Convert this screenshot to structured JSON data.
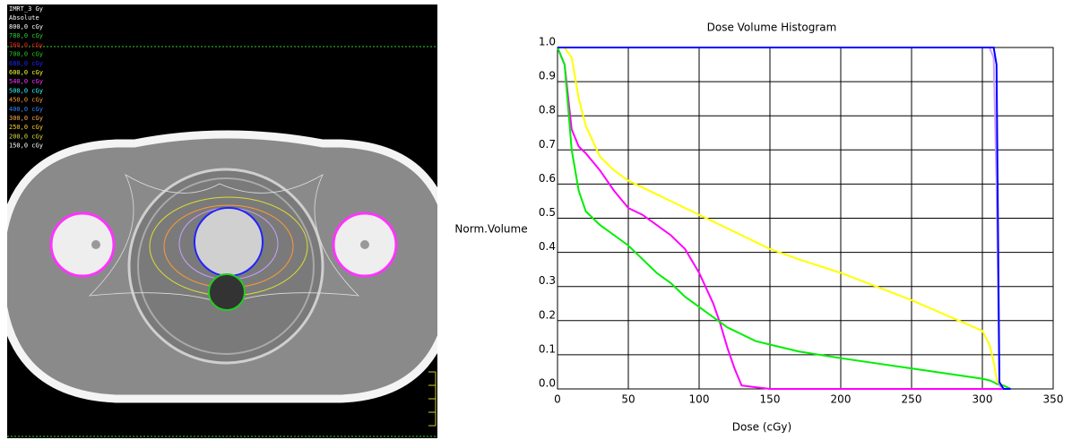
{
  "image_panel": {
    "plan": "IMRT_3 Gy",
    "mode": "Absolute",
    "isodoses": [
      {
        "label": "800,0 cGy",
        "color": "#ffffff"
      },
      {
        "label": "780,0 cGy",
        "color": "#33cc33"
      },
      {
        "label": "760,0 cGy",
        "color": "#ff2020"
      },
      {
        "label": "700,0 cGy",
        "color": "#22cc22"
      },
      {
        "label": "680,0 cGy",
        "color": "#2222ff"
      },
      {
        "label": "600,0 cGy",
        "color": "#ffff33"
      },
      {
        "label": "540,0 cGy",
        "color": "#ff33ff"
      },
      {
        "label": "500,0 cGy",
        "color": "#33ffff"
      },
      {
        "label": "450,0 cGy",
        "color": "#ff9933"
      },
      {
        "label": "400,0 cGy",
        "color": "#3388ff"
      },
      {
        "label": "300,0 cGy",
        "color": "#ffaa55"
      },
      {
        "label": "250,0 cGy",
        "color": "#ffcc33"
      },
      {
        "label": "200,0 cGy",
        "color": "#dddd44"
      },
      {
        "label": "150,0 cGy",
        "color": "#ffffff"
      }
    ]
  },
  "chart_data": {
    "type": "line",
    "title": "Dose Volume Histogram",
    "x_label": "Dose (cGy)",
    "y_label": "Norm.Volume",
    "x": [
      0,
      5,
      10,
      15,
      20,
      30,
      40,
      50,
      60,
      70,
      80,
      90,
      100,
      110,
      115,
      120,
      125,
      130,
      140,
      150,
      170,
      200,
      250,
      300,
      305,
      308,
      310,
      312,
      315,
      320
    ],
    "series": [
      {
        "color": "#ffff00",
        "values": [
          1.0,
          1.0,
          0.97,
          0.85,
          0.77,
          0.68,
          0.64,
          0.61,
          0.59,
          0.57,
          0.55,
          0.53,
          0.51,
          0.49,
          0.48,
          0.47,
          0.46,
          0.45,
          0.43,
          0.41,
          0.38,
          0.34,
          0.26,
          0.17,
          0.13,
          0.08,
          0.03,
          0.01,
          0,
          0
        ]
      },
      {
        "color": "#ff00ff",
        "values": [
          1.0,
          0.95,
          0.76,
          0.71,
          0.69,
          0.64,
          0.58,
          0.53,
          0.51,
          0.48,
          0.45,
          0.41,
          0.34,
          0.25,
          0.19,
          0.12,
          0.06,
          0.01,
          0.005,
          0,
          0,
          0,
          0,
          0,
          0,
          0,
          0,
          0,
          0,
          0
        ]
      },
      {
        "color": "#00ee00",
        "values": [
          1.0,
          0.95,
          0.7,
          0.58,
          0.52,
          0.48,
          0.45,
          0.42,
          0.38,
          0.34,
          0.31,
          0.27,
          0.24,
          0.21,
          0.195,
          0.18,
          0.17,
          0.16,
          0.14,
          0.13,
          0.11,
          0.09,
          0.06,
          0.03,
          0.025,
          0.02,
          0.015,
          0.012,
          0.01,
          0
        ]
      },
      {
        "color": "#c8a0ff",
        "values": [
          1,
          1,
          1,
          1,
          1,
          1,
          1,
          1,
          1,
          1,
          1,
          1,
          1,
          1,
          1,
          1,
          1,
          1,
          1,
          1,
          1,
          1,
          1,
          1,
          1,
          0.97,
          0.6,
          0.01,
          0,
          0
        ]
      },
      {
        "color": "#0000ff",
        "values": [
          1,
          1,
          1,
          1,
          1,
          1,
          1,
          1,
          1,
          1,
          1,
          1,
          1,
          1,
          1,
          1,
          1,
          1,
          1,
          1,
          1,
          1,
          1,
          1,
          1,
          1,
          0.95,
          0.02,
          0,
          0
        ]
      }
    ],
    "xlim": [
      0,
      350
    ],
    "xticks": [
      0,
      50,
      100,
      150,
      200,
      250,
      300,
      350
    ],
    "ylim": [
      0,
      1
    ],
    "yticks": [
      {
        "value": 0,
        "label": "0.0"
      },
      0.1,
      0.2,
      0.3,
      0.4,
      0.5,
      0.6,
      0.7,
      0.8,
      0.9,
      {
        "value": 1,
        "label": "1.0"
      }
    ],
    "grid": true
  }
}
